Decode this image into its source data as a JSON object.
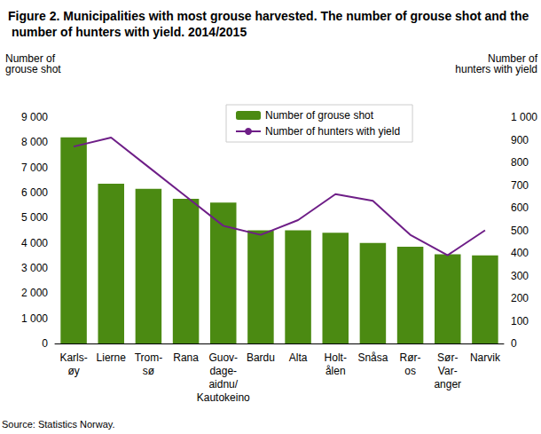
{
  "chart_data": {
    "type": "bar",
    "title": "Figure 2. Municipalities with most grouse harvested. The number of grouse shot and the number of hunters with yield. 2014/2015",
    "ylabel": "Number of\ngrouse shot",
    "y2label": "Number of\nhunters with yield",
    "annotations": [
      "Source: Statistics Norway."
    ],
    "categories": [
      "Karls-\nøy",
      "Lierne",
      "Trom-\nsø",
      "Rana",
      "Guov-\ndage-\naidnu/\nKautokeino",
      "Bardu",
      "Alta",
      "Holt-\nålen",
      "Snåsa",
      "Rør-\nos",
      "Sør-\nVar-\nanger",
      "Narvik"
    ],
    "series": [
      {
        "name": "Number of grouse shot",
        "type": "bar",
        "color": "#4b8a12",
        "values": [
          8200,
          6350,
          6150,
          5750,
          5600,
          4500,
          4500,
          4400,
          4000,
          3850,
          3550,
          3500
        ]
      },
      {
        "name": "Number of hunters with yield",
        "type": "line",
        "axis": "y2",
        "color": "#6e1e87",
        "values": [
          870,
          910,
          780,
          650,
          520,
          480,
          545,
          660,
          630,
          480,
          390,
          500
        ]
      }
    ],
    "ylim": [
      0,
      9000
    ],
    "yticks": [
      0,
      {
        "value": 1000,
        "label": "1 000"
      },
      {
        "value": 2000,
        "label": "2 000"
      },
      {
        "value": 3000,
        "label": "3 000"
      },
      {
        "value": 4000,
        "label": "4 000"
      },
      {
        "value": 5000,
        "label": "5 000"
      },
      {
        "value": 6000,
        "label": "6 000"
      },
      {
        "value": 7000,
        "label": "7 000"
      },
      {
        "value": 8000,
        "label": "8 000"
      },
      {
        "value": 9000,
        "label": "9 000"
      }
    ],
    "y2lim": [
      0,
      1000
    ],
    "y2ticks": [
      0,
      100,
      200,
      300,
      400,
      500,
      600,
      700,
      800,
      900,
      {
        "value": 1000,
        "label": "1 000"
      }
    ],
    "grid": false,
    "legend": "top"
  }
}
